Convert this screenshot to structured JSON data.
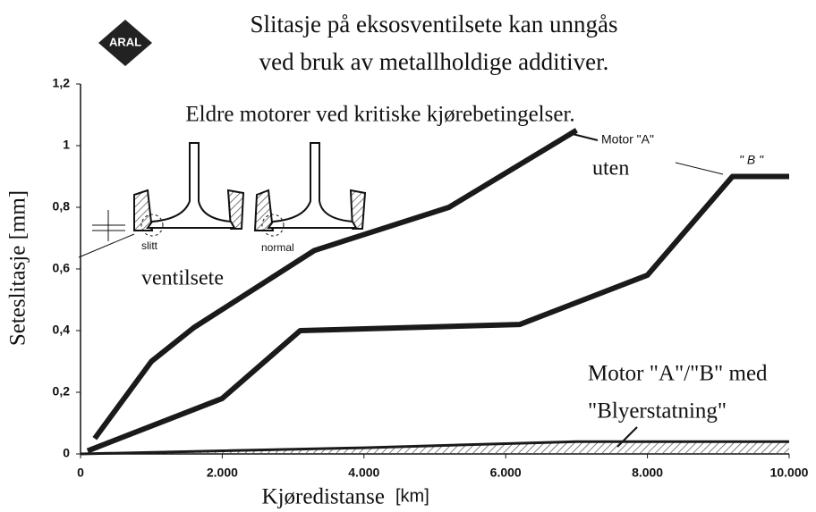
{
  "chart_data": {
    "type": "line",
    "logo": "ARAL",
    "title": [
      "Slitasje på eksosventilsete kan unngås",
      "ved bruk av metallholdige additiver."
    ],
    "subtitle": "Eldre motorer ved kritiske kjørebetingelser.",
    "x_label": "Kjøredistanse",
    "x_unit": "[km]",
    "y_label": "Seteslitasje [mm]",
    "xlim": [
      0,
      10000
    ],
    "xticks": [
      0,
      {
        "value": 2000,
        "label": "2.000"
      },
      {
        "value": 4000,
        "label": "4.000"
      },
      {
        "value": 6000,
        "label": "6.000"
      },
      {
        "value": 8000,
        "label": "8.000"
      },
      {
        "value": 10000,
        "label": "10.000"
      }
    ],
    "ylim": [
      0,
      1.2
    ],
    "yticks": [
      0,
      {
        "value": 0.2,
        "label": "0,2"
      },
      {
        "value": 0.4,
        "label": "0,4"
      },
      {
        "value": 0.6,
        "label": "0,6"
      },
      {
        "value": 0.8,
        "label": "0,8"
      },
      1,
      {
        "value": 1.2,
        "label": "1,2"
      }
    ],
    "series": [
      {
        "name": "Motor \"A\"",
        "color": "#1a1a1a",
        "x": [
          200,
          1000,
          1600,
          3300,
          5200,
          7000
        ],
        "values": [
          0.05,
          0.3,
          0.41,
          0.66,
          0.8,
          1.05
        ]
      },
      {
        "name": "\" B \"",
        "color": "#1a1a1a",
        "x": [
          100,
          2000,
          3100,
          6200,
          8000,
          9200,
          10000
        ],
        "values": [
          0.01,
          0.18,
          0.4,
          0.42,
          0.58,
          0.9,
          0.9
        ]
      },
      {
        "name": "Motor \"A\"/\"B\" med",
        "color": "#1a1a1a",
        "x": [
          0,
          4000,
          7000,
          10000
        ],
        "values": [
          0,
          0.02,
          0.04,
          0.04
        ],
        "hatched": true
      }
    ],
    "annotations": [
      "uten",
      "\"Blyerstatning\""
    ],
    "inset_labels": [
      "slitt",
      "normal",
      "ventilsete"
    ]
  }
}
